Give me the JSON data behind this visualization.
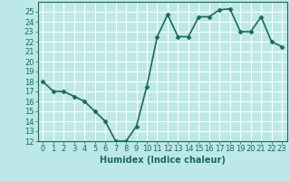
{
  "x": [
    0,
    1,
    2,
    3,
    4,
    5,
    6,
    7,
    8,
    9,
    10,
    11,
    12,
    13,
    14,
    15,
    16,
    17,
    18,
    19,
    20,
    21,
    22,
    23
  ],
  "y": [
    18,
    17,
    17,
    16.5,
    16,
    15,
    14,
    12,
    12,
    13.5,
    17.5,
    22.5,
    24.7,
    22.5,
    22.5,
    24.5,
    24.5,
    25.2,
    25.3,
    23,
    23,
    24.5,
    22,
    21.5
  ],
  "line_color": "#1a6b5a",
  "marker": "D",
  "marker_size": 2.5,
  "bg_color": "#bde8e8",
  "grid_color": "#ffffff",
  "xlabel": "Humidex (Indice chaleur)",
  "ylim": [
    12,
    26
  ],
  "xlim": [
    -0.5,
    23.5
  ],
  "yticks": [
    12,
    13,
    14,
    15,
    16,
    17,
    18,
    19,
    20,
    21,
    22,
    23,
    24,
    25
  ],
  "xticks": [
    0,
    1,
    2,
    3,
    4,
    5,
    6,
    7,
    8,
    9,
    10,
    11,
    12,
    13,
    14,
    15,
    16,
    17,
    18,
    19,
    20,
    21,
    22,
    23
  ],
  "xlabel_fontsize": 7,
  "tick_fontsize": 6,
  "tick_color": "#1a6b5a",
  "axis_color": "#1a6b5a",
  "linewidth": 1.2
}
